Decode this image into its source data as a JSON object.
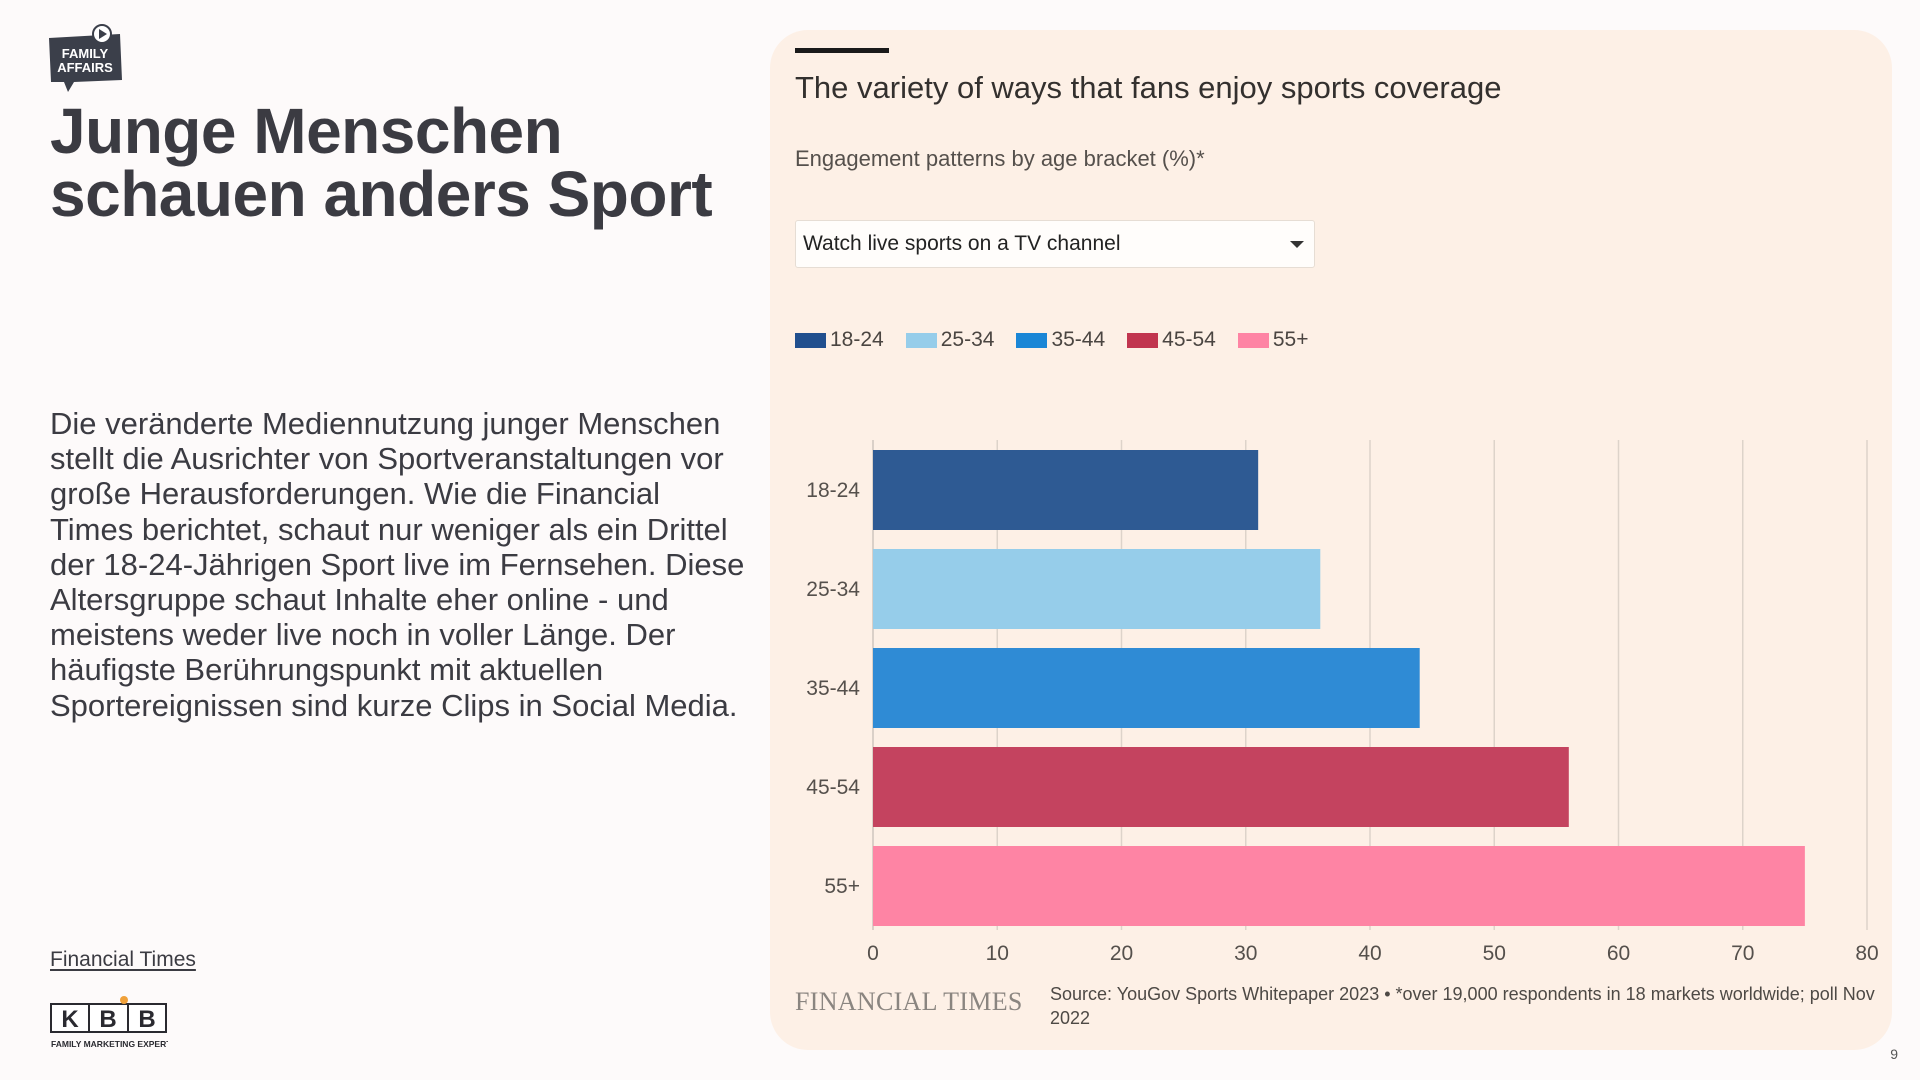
{
  "brand": {
    "logo_line1": "FAMILY",
    "logo_line2": "AFFAIRS",
    "bottom_logo_letters": [
      "K",
      "B",
      "B"
    ],
    "bottom_logo_tagline": "FAMILY MARKETING EXPERTS"
  },
  "headline": "Junge Menschen schauen anders Sport",
  "body": "Die veränderte Mediennutzung junger Menschen stellt die Ausrichter von Sportveranstaltungen vor große Herausforderungen. Wie die Financial Times berichtet, schaut nur weniger als ein Drittel der 18-24-Jährigen Sport live im Fernsehen. Diese Altersgruppe schaut Inhalte eher online - und meistens weder live noch in voller Länge. Der häufigste Berührungspunkt mit aktuellen Sportereignissen sind kurze Clips in Social Media.",
  "source_link": "Financial Times",
  "page_number": "9",
  "card": {
    "dropdown_value": "Watch live sports on a TV channel",
    "footer_brand": "FINANCIAL TIMES",
    "footer_source": "Source: YouGov Sports Whitepaper 2023 • *over 19,000 respondents in 18 markets worldwide; poll Nov 2022"
  },
  "chart_data": {
    "type": "bar",
    "orientation": "horizontal",
    "title": "The variety of ways that fans enjoy sports coverage",
    "subtitle": "Engagement patterns by age bracket (%)*",
    "categories": [
      "18-24",
      "25-34",
      "35-44",
      "45-54",
      "55+"
    ],
    "values": [
      31,
      36,
      44,
      56,
      75
    ],
    "colors": [
      "#2e5a93",
      "#96cdea",
      "#2f8bd5",
      "#c4435f",
      "#fe84a4"
    ],
    "legend": [
      {
        "label": "18-24",
        "color": "#214f8e"
      },
      {
        "label": "25-34",
        "color": "#96cdea"
      },
      {
        "label": "35-44",
        "color": "#1a86d6"
      },
      {
        "label": "45-54",
        "color": "#c1354f"
      },
      {
        "label": "55+",
        "color": "#fe84a4"
      }
    ],
    "xlim": [
      0,
      80
    ],
    "xticks": [
      "0",
      "10",
      "20",
      "30",
      "40",
      "50",
      "60",
      "70",
      "80"
    ],
    "grid": true,
    "legend_position": "top-left"
  }
}
